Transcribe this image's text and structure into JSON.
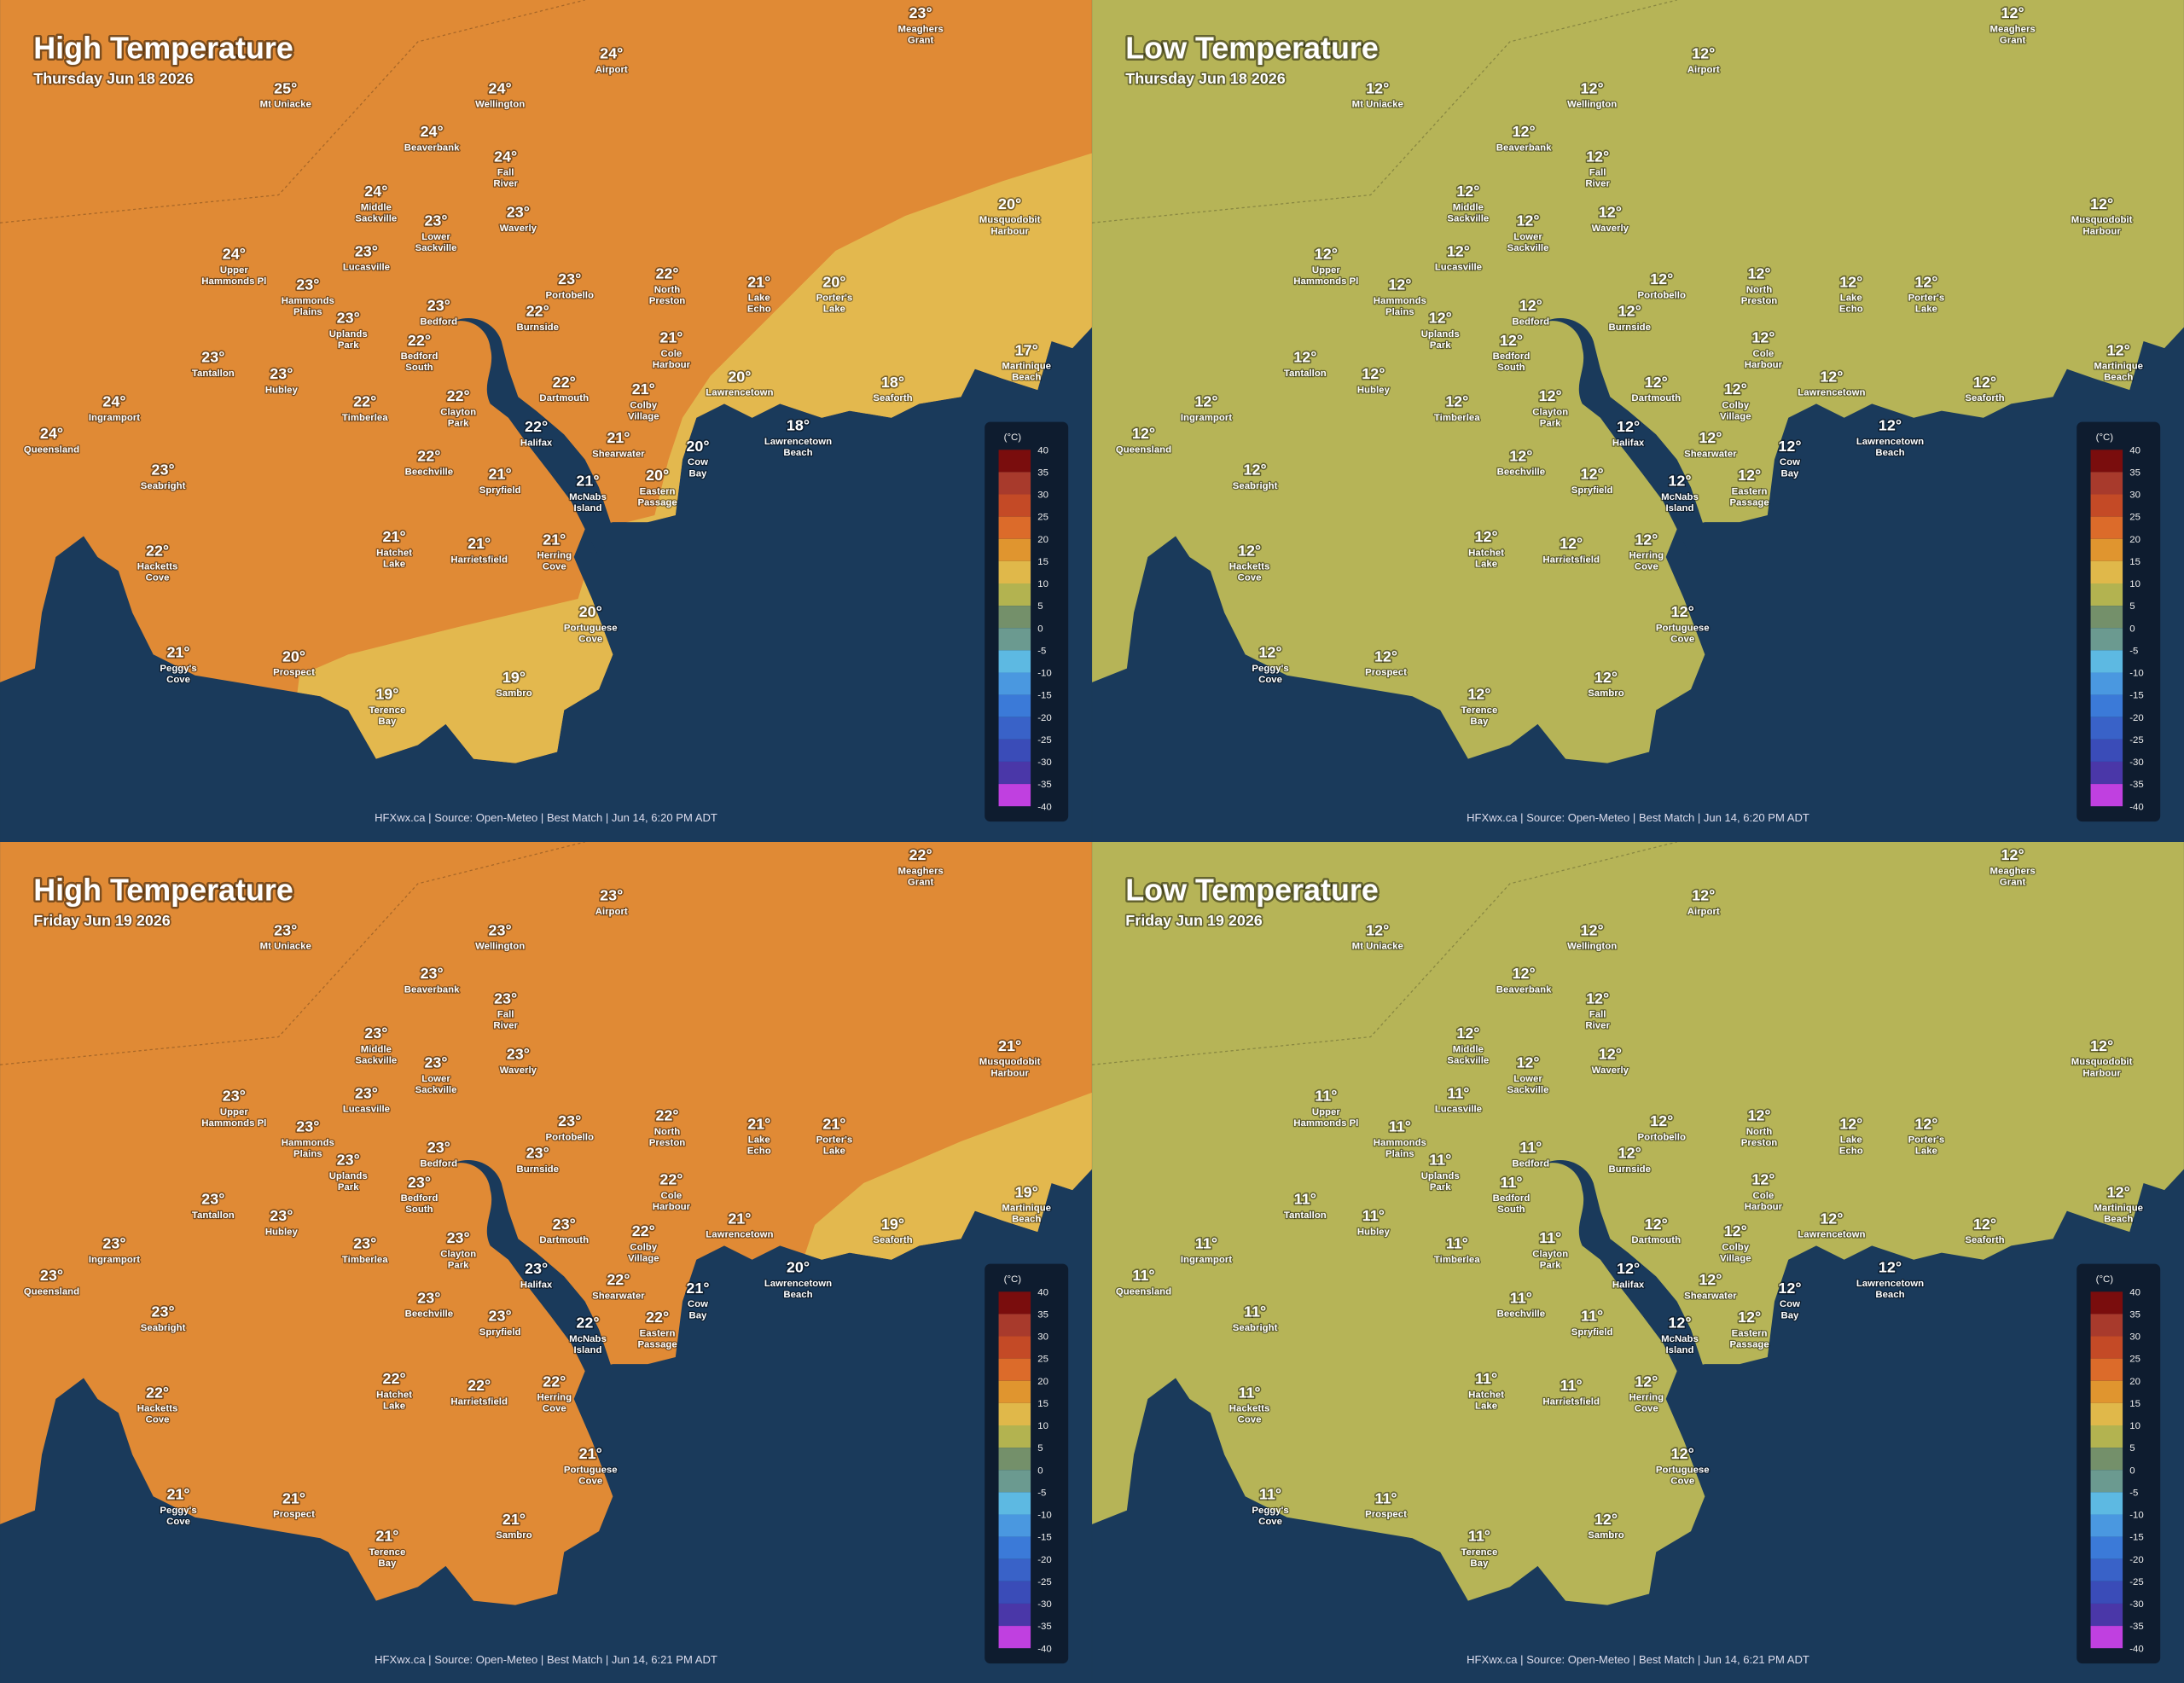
{
  "legend": {
    "unit": "(°C)",
    "ticks": [
      40,
      35,
      30,
      25,
      20,
      15,
      10,
      5,
      0,
      -5,
      -10,
      -15,
      -20,
      -25,
      -30,
      -35,
      -40
    ],
    "colors": [
      "#7a0d0d",
      "#a83a2c",
      "#c44a26",
      "#dc6b2a",
      "#e0952f",
      "#e0b84a",
      "#b3b350",
      "#74906a",
      "#6b9a90",
      "#5db9e2",
      "#4a98e0",
      "#3b7ad8",
      "#3962c8",
      "#3a4cb8",
      "#4a37a8",
      "#c040e0"
    ]
  },
  "places": [
    "Mt Uniacke",
    "Airport",
    "Meaghers\nGrant",
    "Wellington",
    "Beaverbank",
    "Fall\nRiver",
    "Middle\nSackville",
    "Waverly",
    "Lower\nSackville",
    "Musquodobit\nHarbour",
    "Upper\nHammonds Pl",
    "Lucasville",
    "Hammonds\nPlains",
    "Portobello",
    "North\nPreston",
    "Lake\nEcho",
    "Porter's\nLake",
    "Uplands\nPark",
    "Bedford",
    "Burnside",
    "Bedford\nSouth",
    "Cole\nHarbour",
    "Martinique\nBeach",
    "Tantallon",
    "Hubley",
    "Dartmouth",
    "Colby\nVillage",
    "Lawrencetown",
    "Seaforth",
    "Ingramport",
    "Timberlea",
    "Clayton\nPark",
    "Queensland",
    "Halifax",
    "Lawrencetown\nBeach",
    "Shearwater",
    "Cow\nBay",
    "Beechville",
    "Seabright",
    "Spryfield",
    "McNabs\nIsland",
    "Eastern\nPassage",
    "Hatchet\nLake",
    "Harrietsfield",
    "Herring\nCove",
    "Hacketts\nCove",
    "Portuguese\nCove",
    "Peggy's\nCove",
    "Prospect",
    "Sambro",
    "Terence\nBay"
  ],
  "panels": [
    {
      "title": "High Temperature",
      "date": "Thursday Jun 18 2026",
      "footer": "HFXwx.ca | Source: Open-Meteo | Best Match | Jun 14, 6:20 PM ADT",
      "colors": {
        "land": "#e08a35",
        "zone": "#e3b84e"
      },
      "temps": [
        "25°",
        "24°",
        "23°",
        "24°",
        "24°",
        "24°",
        "24°",
        "23°",
        "23°",
        "20°",
        "24°",
        "23°",
        "23°",
        "23°",
        "22°",
        "21°",
        "20°",
        "23°",
        "23°",
        "22°",
        "22°",
        "21°",
        "17°",
        "23°",
        "23°",
        "22°",
        "21°",
        "20°",
        "18°",
        "24°",
        "22°",
        "22°",
        "24°",
        "22°",
        "18°",
        "21°",
        "20°",
        "22°",
        "23°",
        "21°",
        "21°",
        "20°",
        "21°",
        "21°",
        "21°",
        "22°",
        "20°",
        "21°",
        "20°",
        "19°",
        "19°"
      ]
    },
    {
      "title": "Low Temperature",
      "date": "Thursday Jun 18 2026",
      "footer": "HFXwx.ca | Source: Open-Meteo | Best Match | Jun 14, 6:20 PM ADT",
      "colors": {
        "land": "#b6b457"
      },
      "temps": [
        "12°",
        "12°",
        "12°",
        "12°",
        "12°",
        "12°",
        "12°",
        "12°",
        "12°",
        "12°",
        "12°",
        "12°",
        "12°",
        "12°",
        "12°",
        "12°",
        "12°",
        "12°",
        "12°",
        "12°",
        "12°",
        "12°",
        "12°",
        "12°",
        "12°",
        "12°",
        "12°",
        "12°",
        "12°",
        "12°",
        "12°",
        "12°",
        "12°",
        "12°",
        "12°",
        "12°",
        "12°",
        "12°",
        "12°",
        "12°",
        "12°",
        "12°",
        "12°",
        "12°",
        "12°",
        "12°",
        "12°",
        "12°",
        "12°",
        "12°",
        "12°"
      ]
    },
    {
      "title": "High Temperature",
      "date": "Friday Jun 19 2026",
      "footer": "HFXwx.ca | Source: Open-Meteo | Best Match | Jun 14, 6:21 PM ADT",
      "colors": {
        "land": "#e08a35",
        "zone": "#e3b84e"
      },
      "temps": [
        "23°",
        "23°",
        "22°",
        "23°",
        "23°",
        "23°",
        "23°",
        "23°",
        "23°",
        "21°",
        "23°",
        "23°",
        "23°",
        "23°",
        "22°",
        "21°",
        "21°",
        "23°",
        "23°",
        "23°",
        "23°",
        "22°",
        "19°",
        "23°",
        "23°",
        "23°",
        "22°",
        "21°",
        "19°",
        "23°",
        "23°",
        "23°",
        "23°",
        "23°",
        "20°",
        "22°",
        "21°",
        "23°",
        "23°",
        "23°",
        "22°",
        "22°",
        "22°",
        "22°",
        "22°",
        "22°",
        "21°",
        "21°",
        "21°",
        "21°",
        "21°"
      ]
    },
    {
      "title": "Low Temperature",
      "date": "Friday Jun 19 2026",
      "footer": "HFXwx.ca | Source: Open-Meteo | Best Match | Jun 14, 6:21 PM ADT",
      "colors": {
        "land": "#b6b457"
      },
      "temps": [
        "12°",
        "12°",
        "12°",
        "12°",
        "12°",
        "12°",
        "12°",
        "12°",
        "12°",
        "12°",
        "11°",
        "11°",
        "11°",
        "12°",
        "12°",
        "12°",
        "12°",
        "11°",
        "11°",
        "12°",
        "11°",
        "12°",
        "12°",
        "11°",
        "11°",
        "12°",
        "12°",
        "12°",
        "12°",
        "11°",
        "11°",
        "11°",
        "11°",
        "12°",
        "12°",
        "12°",
        "12°",
        "11°",
        "11°",
        "11°",
        "12°",
        "12°",
        "11°",
        "11°",
        "12°",
        "11°",
        "12°",
        "11°",
        "11°",
        "12°",
        "11°"
      ]
    }
  ]
}
